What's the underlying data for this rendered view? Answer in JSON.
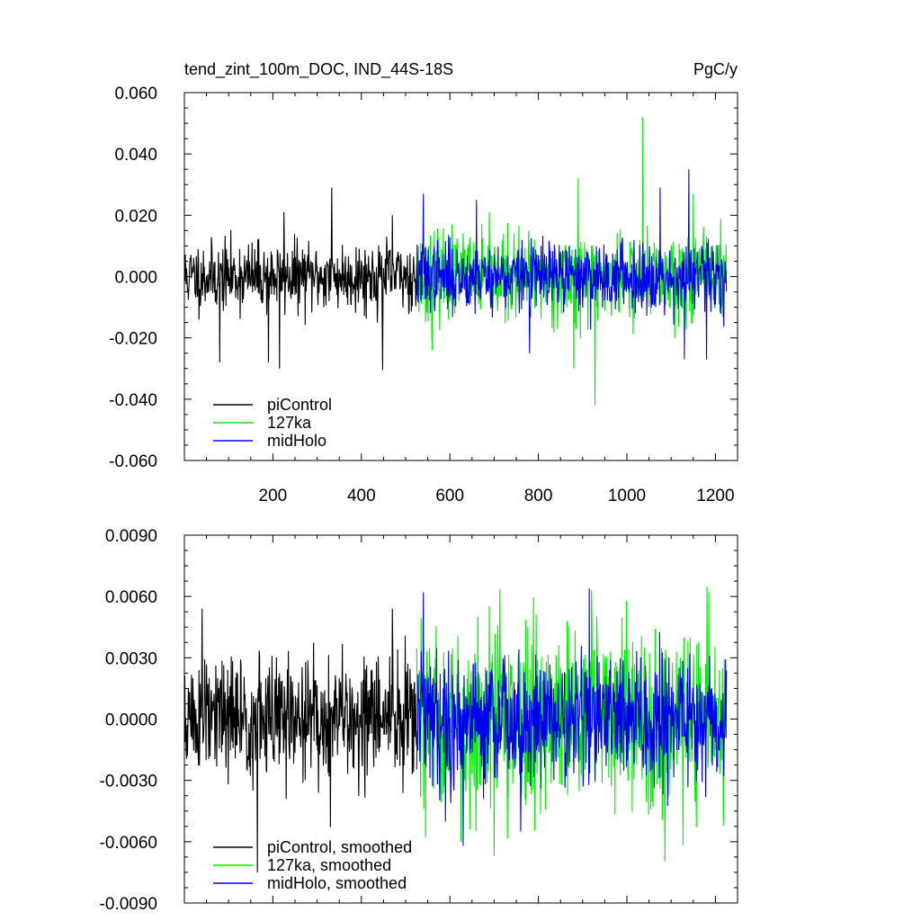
{
  "chart_data": [
    {
      "type": "line",
      "title": "tend_zint_100m_DOC, IND_44S-18S",
      "units": "PgC/y",
      "xlim": [
        0,
        1250
      ],
      "ylim": [
        -0.06,
        0.06
      ],
      "x_ticks": [
        200,
        400,
        600,
        800,
        1000,
        1200
      ],
      "x_tick_labels": [
        "200",
        "400",
        "600",
        "800",
        "1000",
        "1200"
      ],
      "y_ticks": [
        -0.06,
        -0.04,
        -0.02,
        0,
        0.02,
        0.04,
        0.06
      ],
      "y_tick_labels": [
        "-0.060",
        "-0.040",
        "-0.020",
        "0.000",
        "0.020",
        "0.040",
        "0.060"
      ],
      "legend_position": "bottom-left",
      "grid": false,
      "series": [
        {
          "name": "piControl",
          "color": "#000000",
          "x_range": [
            1,
            525
          ],
          "amplitude": 0.009,
          "seed": 11,
          "spikes": [
            [
              225,
              0.021
            ],
            [
              333,
              0.029
            ],
            [
              448,
              -0.0305
            ],
            [
              190,
              -0.028
            ],
            [
              80,
              -0.028
            ],
            [
              215,
              -0.03
            ],
            [
              470,
              0.02
            ]
          ]
        },
        {
          "name": "127ka",
          "color": "#00ee00",
          "x_range": [
            525,
            1225
          ],
          "amplitude": 0.011,
          "seed": 23,
          "spikes": [
            [
              1036,
              0.052
            ],
            [
              928,
              -0.042
            ],
            [
              880,
              -0.03
            ],
            [
              890,
              0.032
            ],
            [
              560,
              -0.024
            ],
            [
              1150,
              0.027
            ]
          ]
        },
        {
          "name": "midHolo",
          "color": "#0000ee",
          "x_range": [
            525,
            1225
          ],
          "amplitude": 0.009,
          "seed": 37,
          "spikes": [
            [
              1140,
              0.035
            ],
            [
              1075,
              0.029
            ],
            [
              1130,
              -0.027
            ],
            [
              540,
              0.027
            ],
            [
              660,
              0.025
            ],
            [
              780,
              -0.025
            ],
            [
              1180,
              -0.027
            ]
          ]
        }
      ]
    },
    {
      "type": "line",
      "title": "",
      "xlim": [
        0,
        1250
      ],
      "ylim": [
        -0.009,
        0.009
      ],
      "y_ticks": [
        -0.009,
        -0.006,
        -0.003,
        0,
        0.003,
        0.006,
        0.009
      ],
      "y_tick_labels": [
        "-0.0090",
        "-0.0060",
        "-0.0030",
        "0.0000",
        "0.0030",
        "0.0060",
        "0.0090"
      ],
      "legend_position": "bottom-left",
      "grid": false,
      "series": [
        {
          "name": "piControl, smoothed",
          "color": "#000000",
          "x_range": [
            1,
            525
          ],
          "amplitude": 0.0025,
          "seed": 51,
          "spikes": [
            [
              165,
              -0.0075
            ],
            [
              40,
              0.0054
            ],
            [
              470,
              0.0054
            ],
            [
              330,
              -0.0053
            ],
            [
              155,
              -0.0035
            ]
          ]
        },
        {
          "name": "127ka, smoothed",
          "color": "#00ee00",
          "x_range": [
            525,
            1225
          ],
          "amplitude": 0.0034,
          "seed": 63,
          "spikes": [
            [
              700,
              -0.0067
            ],
            [
              920,
              0.0063
            ],
            [
              1185,
              0.0062
            ],
            [
              625,
              -0.006
            ],
            [
              545,
              -0.0058
            ]
          ]
        },
        {
          "name": "midHolo, smoothed",
          "color": "#0000ee",
          "x_range": [
            525,
            1225
          ],
          "amplitude": 0.0026,
          "seed": 79,
          "spikes": [
            [
              540,
              0.0062
            ],
            [
              915,
              0.0064
            ],
            [
              630,
              -0.0062
            ],
            [
              760,
              -0.0055
            ]
          ]
        }
      ]
    }
  ]
}
